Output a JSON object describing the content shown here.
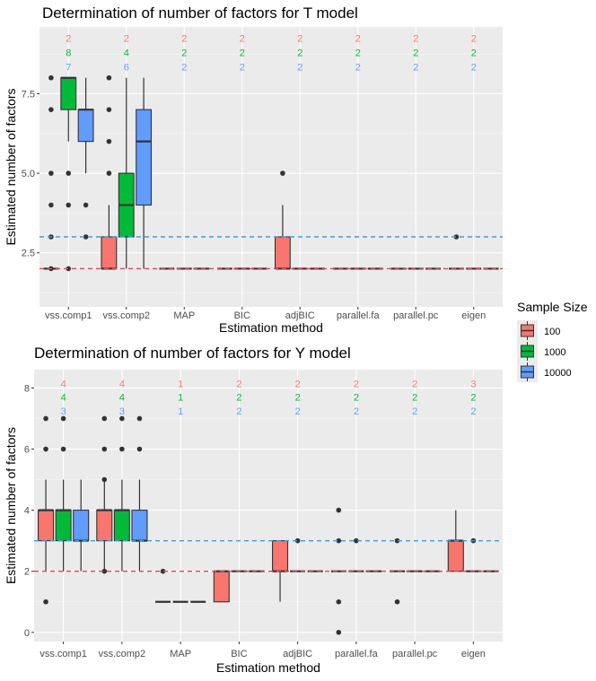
{
  "colors": {
    "panel_bg": "#EBEBEB",
    "grid_major": "#FFFFFF",
    "series_100": "#F8766D",
    "series_1000": "#00BA38",
    "series_10000": "#619CFF",
    "hline_blue": "#3C9EE0",
    "hline_red": "#E04859"
  },
  "legend": {
    "title": "Sample Size",
    "placement": "right",
    "items": [
      {
        "label": "100",
        "color": "#F8766D"
      },
      {
        "label": "1000",
        "color": "#00BA38"
      },
      {
        "label": "10000",
        "color": "#619CFF"
      }
    ]
  },
  "chart_data": [
    {
      "type": "boxplot",
      "title": "Determination of number of factors for T model",
      "xlabel": "Estimation method",
      "ylabel": "Estimated number of factors",
      "categories": [
        "vss.comp1",
        "vss.comp2",
        "MAP",
        "BIC",
        "adjBIC",
        "parallel.fa",
        "parallel.pc",
        "eigen"
      ],
      "ylim": [
        0.8,
        9.6
      ],
      "y_ticks": [
        2.5,
        5.0,
        7.5
      ],
      "y_tick_labels": [
        "2.5",
        "5.0",
        "7.5"
      ],
      "hlines": [
        {
          "y": 3,
          "color": "#3C9EE0"
        },
        {
          "y": 2,
          "color": "#E04859"
        }
      ],
      "annotations": {
        "y_levels": [
          9.25,
          8.8,
          8.35
        ],
        "rows": [
          [
            "2",
            "2",
            "2",
            "2",
            "2",
            "2",
            "2",
            "2"
          ],
          [
            "8",
            "4",
            "2",
            "2",
            "2",
            "2",
            "2",
            "2"
          ],
          [
            "7",
            "6",
            "2",
            "2",
            "2",
            "2",
            "2",
            "2"
          ]
        ]
      },
      "series": [
        {
          "name": "100",
          "boxes": [
            {
              "q1": 2,
              "median": 2,
              "q3": 2,
              "wlo": 2,
              "whi": 2,
              "outliers": [
                2,
                3,
                4,
                5,
                7,
                8
              ]
            },
            {
              "q1": 2,
              "median": 2,
              "q3": 3,
              "wlo": 2,
              "whi": 4,
              "outliers": [
                5,
                6,
                7,
                8
              ]
            },
            {
              "q1": 2,
              "median": 2,
              "q3": 2,
              "wlo": 2,
              "whi": 2,
              "outliers": []
            },
            {
              "q1": 2,
              "median": 2,
              "q3": 2,
              "wlo": 2,
              "whi": 2,
              "outliers": []
            },
            {
              "q1": 2,
              "median": 2,
              "q3": 3,
              "wlo": 2,
              "whi": 4,
              "outliers": [
                5
              ]
            },
            {
              "q1": 2,
              "median": 2,
              "q3": 2,
              "wlo": 2,
              "whi": 2,
              "outliers": []
            },
            {
              "q1": 2,
              "median": 2,
              "q3": 2,
              "wlo": 2,
              "whi": 2,
              "outliers": []
            },
            {
              "q1": 2,
              "median": 2,
              "q3": 2,
              "wlo": 2,
              "whi": 2,
              "outliers": [
                3
              ]
            }
          ]
        },
        {
          "name": "1000",
          "boxes": [
            {
              "q1": 7,
              "median": 8,
              "q3": 8,
              "wlo": 6,
              "whi": 8,
              "outliers": [
                2,
                4,
                5
              ]
            },
            {
              "q1": 3,
              "median": 4,
              "q3": 5,
              "wlo": 2,
              "whi": 8,
              "outliers": []
            },
            {
              "q1": 2,
              "median": 2,
              "q3": 2,
              "wlo": 2,
              "whi": 2,
              "outliers": []
            },
            {
              "q1": 2,
              "median": 2,
              "q3": 2,
              "wlo": 2,
              "whi": 2,
              "outliers": []
            },
            {
              "q1": 2,
              "median": 2,
              "q3": 2,
              "wlo": 2,
              "whi": 2,
              "outliers": []
            },
            {
              "q1": 2,
              "median": 2,
              "q3": 2,
              "wlo": 2,
              "whi": 2,
              "outliers": []
            },
            {
              "q1": 2,
              "median": 2,
              "q3": 2,
              "wlo": 2,
              "whi": 2,
              "outliers": []
            },
            {
              "q1": 2,
              "median": 2,
              "q3": 2,
              "wlo": 2,
              "whi": 2,
              "outliers": []
            }
          ]
        },
        {
          "name": "10000",
          "boxes": [
            {
              "q1": 6,
              "median": 7,
              "q3": 7,
              "wlo": 5,
              "whi": 8,
              "outliers": [
                3,
                4
              ]
            },
            {
              "q1": 4,
              "median": 6,
              "q3": 7,
              "wlo": 2,
              "whi": 8,
              "outliers": []
            },
            {
              "q1": 2,
              "median": 2,
              "q3": 2,
              "wlo": 2,
              "whi": 2,
              "outliers": []
            },
            {
              "q1": 2,
              "median": 2,
              "q3": 2,
              "wlo": 2,
              "whi": 2,
              "outliers": []
            },
            {
              "q1": 2,
              "median": 2,
              "q3": 2,
              "wlo": 2,
              "whi": 2,
              "outliers": []
            },
            {
              "q1": 2,
              "median": 2,
              "q3": 2,
              "wlo": 2,
              "whi": 2,
              "outliers": []
            },
            {
              "q1": 2,
              "median": 2,
              "q3": 2,
              "wlo": 2,
              "whi": 2,
              "outliers": []
            },
            {
              "q1": 2,
              "median": 2,
              "q3": 2,
              "wlo": 2,
              "whi": 2,
              "outliers": []
            }
          ]
        }
      ]
    },
    {
      "type": "boxplot",
      "title": "Determination of number of factors for Y model",
      "xlabel": "Estimation method",
      "ylabel": "Estimated number of factors",
      "categories": [
        "vss.comp1",
        "vss.comp2",
        "MAP",
        "BIC",
        "adjBIC",
        "parallel.fa",
        "parallel.pc",
        "eigen"
      ],
      "ylim": [
        -0.3,
        8.6
      ],
      "y_ticks": [
        0,
        2,
        4,
        6,
        8
      ],
      "y_tick_labels": [
        "0",
        "2",
        "4",
        "6",
        "8"
      ],
      "hlines": [
        {
          "y": 3,
          "color": "#3C9EE0"
        },
        {
          "y": 2,
          "color": "#E04859"
        }
      ],
      "annotations": {
        "y_levels": [
          8.15,
          7.7,
          7.25
        ],
        "rows": [
          [
            "4",
            "4",
            "1",
            "2",
            "2",
            "2",
            "2",
            "3"
          ],
          [
            "4",
            "4",
            "1",
            "2",
            "2",
            "2",
            "2",
            "2"
          ],
          [
            "3",
            "3",
            "1",
            "2",
            "2",
            "2",
            "2",
            "2"
          ]
        ]
      },
      "series": [
        {
          "name": "100",
          "boxes": [
            {
              "q1": 3,
              "median": 4,
              "q3": 4,
              "wlo": 2,
              "whi": 5,
              "outliers": [
                1,
                6,
                7
              ]
            },
            {
              "q1": 3,
              "median": 4,
              "q3": 4,
              "wlo": 2,
              "whi": 5,
              "outliers": [
                2,
                5,
                6,
                7
              ]
            },
            {
              "q1": 1,
              "median": 1,
              "q3": 1,
              "wlo": 1,
              "whi": 1,
              "outliers": [
                2
              ]
            },
            {
              "q1": 1,
              "median": 2,
              "q3": 2,
              "wlo": 1,
              "whi": 2,
              "outliers": []
            },
            {
              "q1": 2,
              "median": 2,
              "q3": 3,
              "wlo": 1,
              "whi": 3,
              "outliers": []
            },
            {
              "q1": 2,
              "median": 2,
              "q3": 2,
              "wlo": 2,
              "whi": 2,
              "outliers": [
                0,
                1,
                3,
                4
              ]
            },
            {
              "q1": 2,
              "median": 2,
              "q3": 2,
              "wlo": 2,
              "whi": 2,
              "outliers": [
                1,
                3
              ]
            },
            {
              "q1": 2,
              "median": 3,
              "q3": 3,
              "wlo": 2,
              "whi": 4,
              "outliers": []
            }
          ]
        },
        {
          "name": "1000",
          "boxes": [
            {
              "q1": 3,
              "median": 4,
              "q3": 4,
              "wlo": 2,
              "whi": 5,
              "outliers": [
                6,
                7
              ]
            },
            {
              "q1": 3,
              "median": 4,
              "q3": 4,
              "wlo": 2,
              "whi": 5,
              "outliers": [
                6,
                7
              ]
            },
            {
              "q1": 1,
              "median": 1,
              "q3": 1,
              "wlo": 1,
              "whi": 1,
              "outliers": []
            },
            {
              "q1": 2,
              "median": 2,
              "q3": 2,
              "wlo": 2,
              "whi": 2,
              "outliers": []
            },
            {
              "q1": 2,
              "median": 2,
              "q3": 2,
              "wlo": 2,
              "whi": 2,
              "outliers": [
                3
              ]
            },
            {
              "q1": 2,
              "median": 2,
              "q3": 2,
              "wlo": 2,
              "whi": 2,
              "outliers": [
                3
              ]
            },
            {
              "q1": 2,
              "median": 2,
              "q3": 2,
              "wlo": 2,
              "whi": 2,
              "outliers": []
            },
            {
              "q1": 2,
              "median": 2,
              "q3": 2,
              "wlo": 2,
              "whi": 2,
              "outliers": [
                3
              ]
            }
          ]
        },
        {
          "name": "10000",
          "boxes": [
            {
              "q1": 3,
              "median": 3,
              "q3": 4,
              "wlo": 2,
              "whi": 5,
              "outliers": []
            },
            {
              "q1": 3,
              "median": 3,
              "q3": 4,
              "wlo": 2,
              "whi": 5,
              "outliers": [
                6,
                7
              ]
            },
            {
              "q1": 1,
              "median": 1,
              "q3": 1,
              "wlo": 1,
              "whi": 1,
              "outliers": []
            },
            {
              "q1": 2,
              "median": 2,
              "q3": 2,
              "wlo": 2,
              "whi": 2,
              "outliers": []
            },
            {
              "q1": 2,
              "median": 2,
              "q3": 2,
              "wlo": 2,
              "whi": 2,
              "outliers": []
            },
            {
              "q1": 2,
              "median": 2,
              "q3": 2,
              "wlo": 2,
              "whi": 2,
              "outliers": []
            },
            {
              "q1": 2,
              "median": 2,
              "q3": 2,
              "wlo": 2,
              "whi": 2,
              "outliers": []
            },
            {
              "q1": 2,
              "median": 2,
              "q3": 2,
              "wlo": 2,
              "whi": 2,
              "outliers": []
            }
          ]
        }
      ]
    }
  ]
}
